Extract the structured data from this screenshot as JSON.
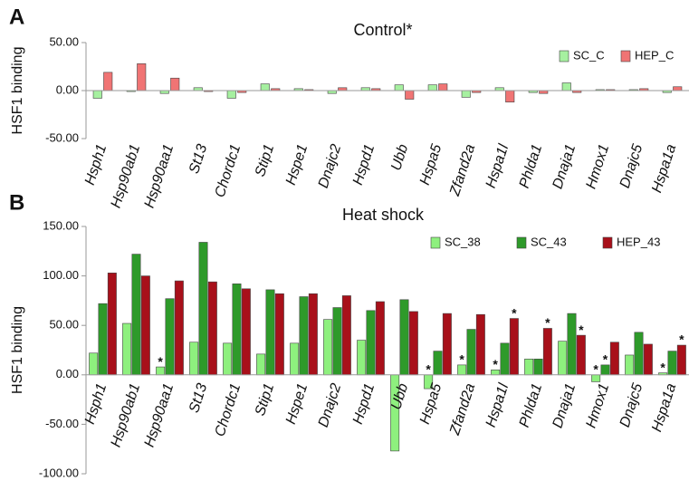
{
  "chart_data": [
    {
      "type": "bar",
      "panel_label": "A",
      "title": "Control*",
      "ylabel": "HSF1 binding",
      "categories": [
        "Hsph1",
        "Hsp90ab1",
        "Hsp90aa1",
        "St13",
        "Chordc1",
        "Stip1",
        "Hspe1",
        "Dnajc2",
        "Hspd1",
        "Ubb",
        "Hspa5",
        "Zfand2a",
        "Hspa1l",
        "Phlda1",
        "Dnaja1",
        "Hmox1",
        "Dnajc5",
        "Hspa1a"
      ],
      "series": [
        {
          "name": "SC_C",
          "color": "#a6f0a0",
          "values": [
            -8,
            -1,
            -3,
            3,
            -8,
            7,
            2,
            -3,
            3,
            6,
            6,
            -7,
            3,
            -2,
            8,
            1,
            1,
            -2
          ]
        },
        {
          "name": "HEP_C",
          "color": "#f07474",
          "values": [
            19,
            28,
            13,
            -1,
            -2,
            2,
            1,
            3,
            2,
            -9,
            7,
            -2,
            -12,
            -3,
            -2,
            1,
            2,
            4
          ]
        }
      ],
      "ylim": [
        -50,
        50
      ],
      "yticks": [
        {
          "value": 50,
          "label": "50.00"
        },
        {
          "value": 0,
          "label": "0.00"
        },
        {
          "value": -50,
          "label": "-50.00"
        }
      ],
      "legend": "top-right",
      "annotations": []
    },
    {
      "type": "bar",
      "panel_label": "B",
      "title": "Heat shock",
      "ylabel": "HSF1 binding",
      "categories": [
        "Hsph1",
        "Hsp90ab1",
        "Hsp90aa1",
        "St13",
        "Chordc1",
        "Stip1",
        "Hspe1",
        "Dnajc2",
        "Hspd1",
        "Ubb",
        "Hspa5",
        "Zfand2a",
        "Hspa1l",
        "Phlda1",
        "Dnaja1",
        "Hmox1",
        "Dnajc5",
        "Hspa1a"
      ],
      "series": [
        {
          "name": "SC_38",
          "color": "#8ef07e",
          "values": [
            22,
            52,
            8,
            33,
            32,
            21,
            32,
            56,
            35,
            -77,
            -14,
            10,
            5,
            16,
            34,
            -7,
            20,
            2
          ]
        },
        {
          "name": "SC_43",
          "color": "#2e9a2a",
          "values": [
            72,
            122,
            77,
            134,
            92,
            86,
            79,
            68,
            65,
            76,
            24,
            46,
            32,
            16,
            62,
            10,
            43,
            24
          ]
        },
        {
          "name": "HEP_43",
          "color": "#a8101a",
          "values": [
            103,
            100,
            95,
            94,
            87,
            82,
            82,
            80,
            74,
            64,
            62,
            61,
            57,
            47,
            40,
            33,
            31,
            30
          ]
        }
      ],
      "ylim": [
        -100,
        150
      ],
      "yticks": [
        {
          "value": 150,
          "label": "150.00"
        },
        {
          "value": 100,
          "label": "100.00"
        },
        {
          "value": 50,
          "label": "50.00"
        },
        {
          "value": 0,
          "label": "0.00"
        },
        {
          "value": -50,
          "label": "-50.00"
        },
        {
          "value": -100,
          "label": "-100.00"
        }
      ],
      "legend": "top-right",
      "annotations": [
        {
          "text": "*",
          "category": "Hsp90aa1",
          "series": "SC_38"
        },
        {
          "text": "*",
          "category": "Hspa5",
          "series": "SC_38"
        },
        {
          "text": "*",
          "category": "Zfand2a",
          "series": "SC_38"
        },
        {
          "text": "*",
          "category": "Hspa1l",
          "series": "SC_38"
        },
        {
          "text": "*",
          "category": "Hspa1l",
          "series": "HEP_43"
        },
        {
          "text": "*",
          "category": "Phlda1",
          "series": "HEP_43"
        },
        {
          "text": "*",
          "category": "Dnaja1",
          "series": "HEP_43"
        },
        {
          "text": "*",
          "category": "Hmox1",
          "series": "SC_38"
        },
        {
          "text": "*",
          "category": "Hmox1",
          "series": "SC_43"
        },
        {
          "text": "*",
          "category": "Hspa1a",
          "series": "SC_38"
        },
        {
          "text": "*",
          "category": "Hspa1a",
          "series": "HEP_43"
        }
      ]
    }
  ]
}
